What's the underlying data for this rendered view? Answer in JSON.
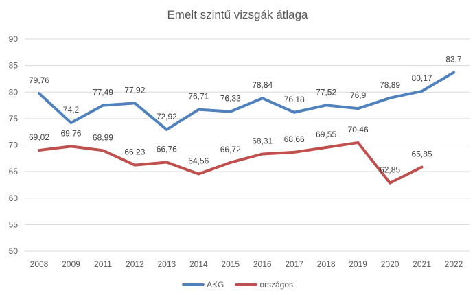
{
  "chart_data": {
    "type": "line",
    "title": "Emelt szintű vizsgák átlaga",
    "xlabel": "",
    "ylabel": "",
    "categories": [
      "2008",
      "2009",
      "2011",
      "2012",
      "2013",
      "2014",
      "2015",
      "2016",
      "2017",
      "2018",
      "2019",
      "2020",
      "2021",
      "2022"
    ],
    "y_ticks": [
      90,
      85,
      80,
      75,
      70,
      65,
      60,
      55,
      50
    ],
    "ylim": [
      50,
      90
    ],
    "grid": true,
    "grid_color": "#D9D9D9",
    "legend_position": "bottom",
    "series": [
      {
        "name": "AKG",
        "color": "#4F81BD",
        "values": [
          79.76,
          74.2,
          77.49,
          77.92,
          72.92,
          76.71,
          76.33,
          78.84,
          76.18,
          77.52,
          76.9,
          78.89,
          80.17,
          83.7
        ],
        "labels": [
          "79,76",
          "74,2",
          "77,49",
          "77,92",
          "72,92",
          "76,71",
          "76,33",
          "78,84",
          "76,18",
          "77,52",
          "76,9",
          "78,89",
          "80,17",
          "83,7"
        ]
      },
      {
        "name": "országos",
        "color": "#C0504D",
        "values": [
          69.02,
          69.76,
          68.99,
          66.23,
          66.76,
          64.56,
          66.72,
          68.31,
          68.66,
          69.55,
          70.46,
          62.85,
          65.85
        ],
        "labels": [
          "69,02",
          "69,76",
          "68,99",
          "66,23",
          "66,76",
          "64,56",
          "66,72",
          "68,31",
          "68,66",
          "69,55",
          "70,46",
          "62,85",
          "65,85"
        ]
      }
    ]
  }
}
